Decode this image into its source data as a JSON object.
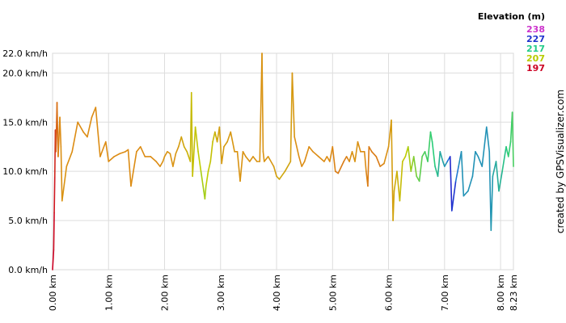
{
  "chart_data": {
    "type": "line",
    "title": "",
    "xlabel": "",
    "ylabel": "",
    "xlim": [
      0,
      8.23
    ],
    "ylim": [
      0,
      22
    ],
    "grid": true,
    "x_ticks": [
      {
        "v": 0,
        "label": "0.00 km"
      },
      {
        "v": 1,
        "label": "1.00 km"
      },
      {
        "v": 2,
        "label": "2.00 km"
      },
      {
        "v": 3,
        "label": "3.00 km"
      },
      {
        "v": 4,
        "label": "4.00 km"
      },
      {
        "v": 5,
        "label": "5.00 km"
      },
      {
        "v": 6,
        "label": "6.00 km"
      },
      {
        "v": 7,
        "label": "7.00 km"
      },
      {
        "v": 8,
        "label": "8.00 km"
      },
      {
        "v": 8.23,
        "label": "8.23 km"
      }
    ],
    "y_ticks": [
      {
        "v": 0,
        "label": "0.0 km/h"
      },
      {
        "v": 5,
        "label": "5.0 km/h"
      },
      {
        "v": 10,
        "label": "10.0 km/h"
      },
      {
        "v": 15,
        "label": "15.0 km/h"
      },
      {
        "v": 20,
        "label": "20.0 km/h"
      },
      {
        "v": 22,
        "label": "22.0 km/h"
      }
    ],
    "legend": {
      "title": "Elevation (m)",
      "position": "top-right",
      "entries": [
        {
          "label": "238",
          "color": "#cc33cc"
        },
        {
          "label": "227",
          "color": "#1f33cc"
        },
        {
          "label": "217",
          "color": "#22cc88"
        },
        {
          "label": "207",
          "color": "#b8cc00"
        },
        {
          "label": "197",
          "color": "#cc0022"
        }
      ]
    },
    "credit": "created by GPSVisualizer.com",
    "series": [
      {
        "color_by": "elevation",
        "points": [
          [
            0.0,
            0.0,
            197
          ],
          [
            0.02,
            2.0,
            197
          ],
          [
            0.03,
            5.8,
            198
          ],
          [
            0.04,
            9.5,
            199
          ],
          [
            0.05,
            14.2,
            200
          ],
          [
            0.06,
            12.0,
            202
          ],
          [
            0.08,
            17.0,
            204
          ],
          [
            0.1,
            11.5,
            205
          ],
          [
            0.13,
            15.5,
            206
          ],
          [
            0.15,
            12.5,
            206
          ],
          [
            0.17,
            7.0,
            207
          ],
          [
            0.25,
            10.5,
            207
          ],
          [
            0.35,
            12.0,
            206
          ],
          [
            0.45,
            15.0,
            206
          ],
          [
            0.55,
            14.0,
            206
          ],
          [
            0.62,
            13.5,
            206
          ],
          [
            0.7,
            15.5,
            206
          ],
          [
            0.77,
            16.5,
            206
          ],
          [
            0.85,
            11.5,
            206
          ],
          [
            0.95,
            13.0,
            206
          ],
          [
            1.0,
            11.0,
            206
          ],
          [
            1.1,
            11.5,
            206
          ],
          [
            1.2,
            11.8,
            206
          ],
          [
            1.3,
            12.0,
            206
          ],
          [
            1.35,
            12.2,
            206
          ],
          [
            1.4,
            8.5,
            206
          ],
          [
            1.5,
            12.0,
            206
          ],
          [
            1.57,
            12.5,
            206
          ],
          [
            1.65,
            11.5,
            206
          ],
          [
            1.75,
            11.5,
            206
          ],
          [
            1.85,
            11.0,
            206
          ],
          [
            1.92,
            10.5,
            206
          ],
          [
            1.97,
            11.0,
            207
          ],
          [
            2.0,
            11.5,
            207
          ],
          [
            2.05,
            12.0,
            207
          ],
          [
            2.1,
            11.8,
            207
          ],
          [
            2.15,
            10.5,
            207
          ],
          [
            2.2,
            11.8,
            207
          ],
          [
            2.25,
            12.5,
            208
          ],
          [
            2.3,
            13.5,
            209
          ],
          [
            2.35,
            12.5,
            210
          ],
          [
            2.4,
            12.0,
            211
          ],
          [
            2.46,
            11.0,
            212
          ],
          [
            2.48,
            18.0,
            213
          ],
          [
            2.5,
            9.5,
            213
          ],
          [
            2.55,
            14.5,
            214
          ],
          [
            2.6,
            12.0,
            215
          ],
          [
            2.65,
            10.0,
            216
          ],
          [
            2.7,
            8.0,
            217
          ],
          [
            2.72,
            7.2,
            217
          ],
          [
            2.74,
            8.5,
            216
          ],
          [
            2.78,
            10.0,
            215
          ],
          [
            2.82,
            11.0,
            214
          ],
          [
            2.86,
            13.0,
            213
          ],
          [
            2.9,
            14.0,
            212
          ],
          [
            2.94,
            13.0,
            210
          ],
          [
            2.98,
            14.5,
            209
          ],
          [
            3.02,
            10.8,
            208
          ],
          [
            3.06,
            12.5,
            208
          ],
          [
            3.12,
            13.0,
            208
          ],
          [
            3.18,
            14.0,
            208
          ],
          [
            3.25,
            12.0,
            207
          ],
          [
            3.3,
            12.0,
            207
          ],
          [
            3.35,
            9.0,
            207
          ],
          [
            3.4,
            12.0,
            207
          ],
          [
            3.45,
            11.5,
            207
          ],
          [
            3.52,
            11.0,
            207
          ],
          [
            3.58,
            11.5,
            207
          ],
          [
            3.65,
            11.0,
            207
          ],
          [
            3.7,
            11.0,
            207
          ],
          [
            3.74,
            22.0,
            207
          ],
          [
            3.76,
            12.0,
            207
          ],
          [
            3.78,
            11.0,
            207
          ],
          [
            3.85,
            11.5,
            207
          ],
          [
            3.95,
            10.5,
            208
          ],
          [
            4.0,
            9.5,
            209
          ],
          [
            4.05,
            9.2,
            210
          ],
          [
            4.15,
            10.0,
            210
          ],
          [
            4.25,
            11.0,
            209
          ],
          [
            4.28,
            20.0,
            208
          ],
          [
            4.32,
            13.5,
            207
          ],
          [
            4.4,
            11.5,
            206
          ],
          [
            4.45,
            10.5,
            206
          ],
          [
            4.5,
            11.0,
            206
          ],
          [
            4.58,
            12.5,
            206
          ],
          [
            4.65,
            12.0,
            206
          ],
          [
            4.75,
            11.5,
            206
          ],
          [
            4.85,
            11.0,
            206
          ],
          [
            4.9,
            11.5,
            206
          ],
          [
            4.95,
            11.0,
            206
          ],
          [
            5.0,
            12.5,
            206
          ],
          [
            5.05,
            10.0,
            205
          ],
          [
            5.1,
            9.8,
            205
          ],
          [
            5.2,
            11.0,
            205
          ],
          [
            5.25,
            11.5,
            205
          ],
          [
            5.3,
            11.0,
            206
          ],
          [
            5.35,
            12.0,
            207
          ],
          [
            5.4,
            11.0,
            207
          ],
          [
            5.45,
            13.0,
            207
          ],
          [
            5.5,
            12.0,
            206
          ],
          [
            5.57,
            12.0,
            206
          ],
          [
            5.6,
            10.0,
            206
          ],
          [
            5.63,
            8.5,
            205
          ],
          [
            5.65,
            12.5,
            205
          ],
          [
            5.7,
            12.0,
            205
          ],
          [
            5.78,
            11.5,
            205
          ],
          [
            5.85,
            10.5,
            205
          ],
          [
            5.92,
            10.8,
            206
          ],
          [
            6.0,
            12.5,
            207
          ],
          [
            6.05,
            15.2,
            208
          ],
          [
            6.08,
            5.0,
            209
          ],
          [
            6.1,
            8.0,
            210
          ],
          [
            6.15,
            10.0,
            211
          ],
          [
            6.2,
            7.0,
            212
          ],
          [
            6.25,
            11.0,
            214
          ],
          [
            6.3,
            11.5,
            215
          ],
          [
            6.35,
            12.5,
            216
          ],
          [
            6.4,
            10.0,
            217
          ],
          [
            6.45,
            11.5,
            218
          ],
          [
            6.5,
            9.5,
            219
          ],
          [
            6.55,
            9.0,
            220
          ],
          [
            6.6,
            11.5,
            220
          ],
          [
            6.65,
            12.0,
            221
          ],
          [
            6.7,
            11.0,
            221
          ],
          [
            6.75,
            14.0,
            222
          ],
          [
            6.78,
            13.0,
            222
          ],
          [
            6.83,
            10.5,
            223
          ],
          [
            6.88,
            9.5,
            224
          ],
          [
            6.92,
            12.0,
            225
          ],
          [
            6.97,
            11.0,
            226
          ],
          [
            7.0,
            10.5,
            226
          ],
          [
            7.05,
            11.0,
            228
          ],
          [
            7.1,
            11.5,
            232
          ],
          [
            7.13,
            6.0,
            236
          ],
          [
            7.2,
            9.0,
            230
          ],
          [
            7.25,
            10.5,
            228
          ],
          [
            7.3,
            12.0,
            227
          ],
          [
            7.34,
            7.5,
            227
          ],
          [
            7.42,
            8.0,
            227
          ],
          [
            7.5,
            9.5,
            227
          ],
          [
            7.55,
            12.0,
            227
          ],
          [
            7.6,
            11.5,
            227
          ],
          [
            7.67,
            10.5,
            227
          ],
          [
            7.75,
            14.5,
            227
          ],
          [
            7.8,
            12.0,
            227
          ],
          [
            7.83,
            4.0,
            227
          ],
          [
            7.86,
            9.5,
            226
          ],
          [
            7.92,
            11.0,
            225
          ],
          [
            7.97,
            8.0,
            225
          ],
          [
            8.03,
            10.0,
            224
          ],
          [
            8.1,
            12.5,
            223
          ],
          [
            8.14,
            11.5,
            222
          ],
          [
            8.18,
            13.0,
            222
          ],
          [
            8.21,
            16.0,
            221
          ],
          [
            8.23,
            10.5,
            221
          ]
        ]
      }
    ]
  }
}
